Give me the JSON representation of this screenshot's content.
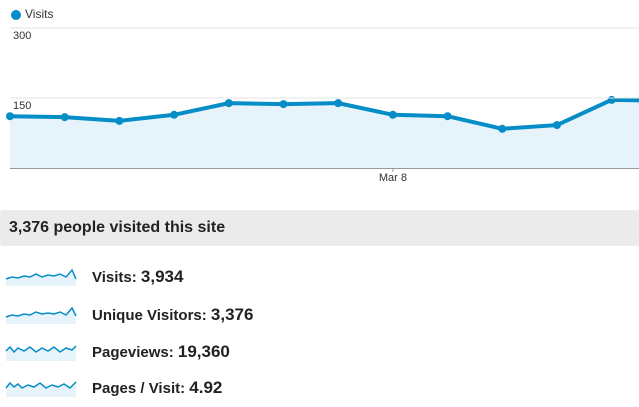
{
  "chart_data": {
    "type": "line",
    "legend": "Visits",
    "color": "#058dc7",
    "categories": [
      null,
      null,
      null,
      null,
      null,
      null,
      null,
      "Mar 8",
      null,
      null,
      null,
      null,
      null
    ],
    "series": [
      {
        "name": "Visits",
        "color": "#058dc7",
        "values": [
          111,
          109,
          101,
          114,
          139,
          137,
          139,
          114,
          111,
          84,
          92,
          146,
          144
        ]
      }
    ],
    "ylim": [
      0,
      300
    ],
    "yticks": [
      150,
      300
    ],
    "grid": true
  },
  "summary": {
    "title": "3,376 people visited this site",
    "metrics": [
      {
        "label": "Visits:",
        "value": "3,934"
      },
      {
        "label": "Unique Visitors:",
        "value": "3,376"
      },
      {
        "label": "Pageviews:",
        "value": "19,360"
      },
      {
        "label": "Pages / Visit:",
        "value": "4.92"
      }
    ]
  }
}
